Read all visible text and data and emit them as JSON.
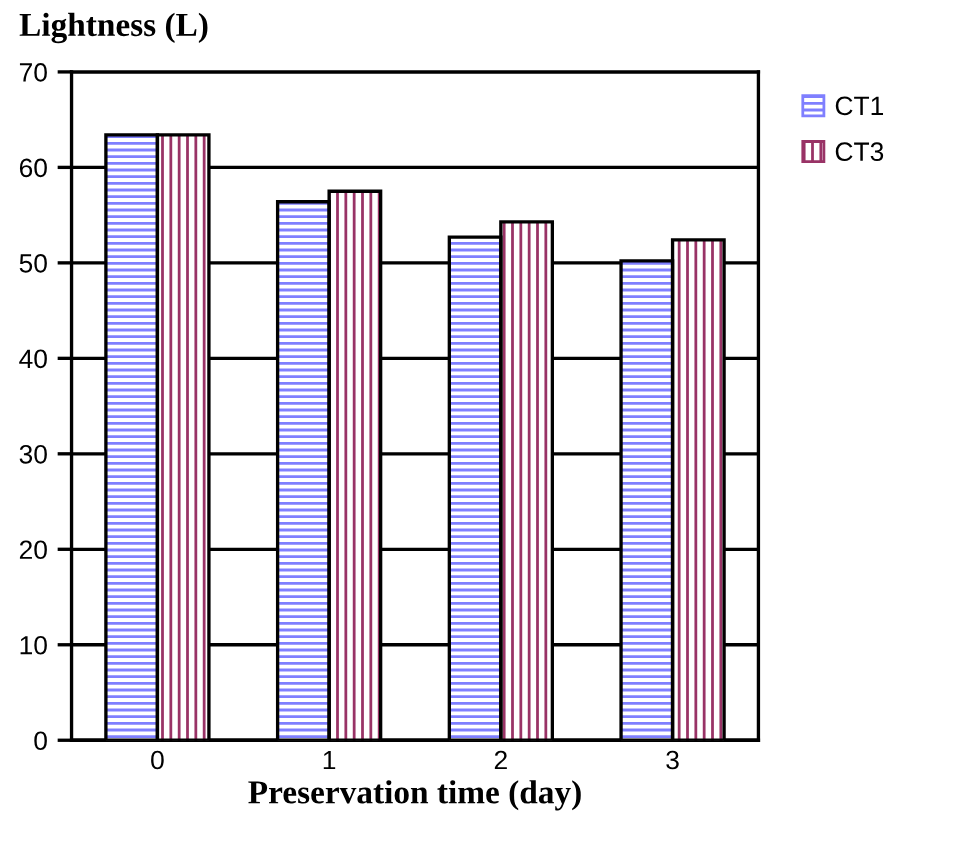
{
  "chart_data": {
    "type": "bar",
    "title": "Lightness (L)",
    "xlabel": "Preservation time (day)",
    "categories": [
      "0",
      "1",
      "2",
      "3"
    ],
    "series": [
      {
        "name": "CT1",
        "color": "#7f7fff",
        "values": [
          63.4,
          56.4,
          52.7,
          50.2
        ]
      },
      {
        "name": "CT3",
        "color": "#993366",
        "values": [
          63.4,
          57.5,
          54.3,
          52.4
        ]
      }
    ],
    "ylim": [
      0,
      70
    ],
    "yticks": [
      0,
      10,
      20,
      30,
      40,
      50,
      60,
      70
    ],
    "grid": "y",
    "legend": "right"
  }
}
